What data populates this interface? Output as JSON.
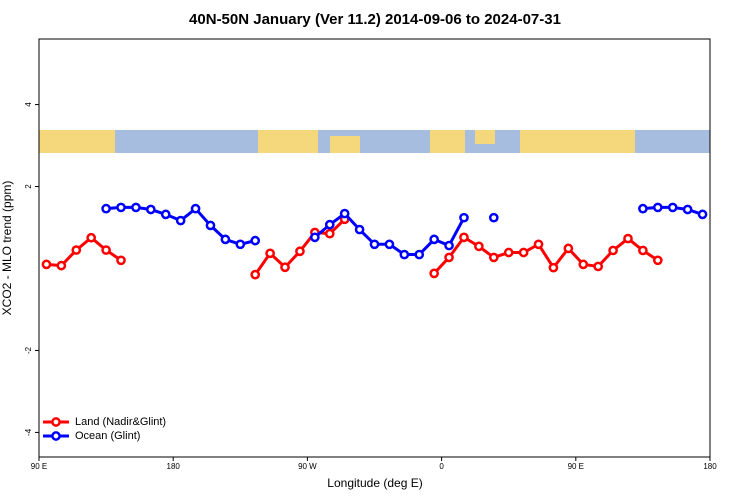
{
  "chart_data": {
    "type": "line",
    "title": "40N-50N January (Ver 11.2)   2014-09-06 to 2024-07-31",
    "xlabel": "Longitude (deg E)",
    "ylabel": "XCO2 - MLO trend (ppm)",
    "x": [
      95,
      105,
      115,
      125,
      135,
      145,
      155,
      165,
      175,
      185,
      195,
      205,
      215,
      225,
      235,
      245,
      255,
      265,
      275,
      285,
      295,
      305,
      315,
      325,
      335,
      345,
      355,
      365,
      375,
      385,
      395,
      405,
      415,
      425,
      435,
      445,
      455,
      465,
      475,
      485,
      495,
      505,
      515,
      525,
      535
    ],
    "series": [
      {
        "name": "Land (Nadir&Glint)",
        "color": "#ff0000",
        "values": [
          0.1,
          0.07,
          0.45,
          0.75,
          0.45,
          0.2,
          null,
          null,
          null,
          null,
          null,
          null,
          null,
          null,
          -0.15,
          0.37,
          0.03,
          0.42,
          0.88,
          0.85,
          1.2,
          null,
          null,
          null,
          null,
          null,
          -0.12,
          0.27,
          0.76,
          0.54,
          0.27,
          0.39,
          0.39,
          0.59,
          0.02,
          0.49,
          0.1,
          0.05,
          0.44,
          0.73,
          0.44,
          0.2,
          null,
          null,
          null
        ]
      },
      {
        "name": "Ocean (Glint)",
        "color": "#0000ff",
        "values": [
          null,
          null,
          null,
          null,
          1.46,
          1.49,
          1.49,
          1.44,
          1.32,
          1.17,
          1.46,
          1.05,
          0.71,
          0.59,
          0.68,
          null,
          null,
          null,
          0.76,
          1.07,
          1.34,
          0.95,
          0.59,
          0.59,
          0.34,
          0.34,
          0.71,
          0.56,
          1.24,
          null,
          1.24,
          null,
          null,
          null,
          null,
          null,
          null,
          null,
          null,
          null,
          1.46,
          1.49,
          1.49,
          1.44,
          1.32
        ]
      }
    ],
    "xlim": [
      90,
      540
    ],
    "xticks": [
      {
        "value": 90,
        "label": "90 E"
      },
      180,
      {
        "value": 270,
        "label": "90 W"
      },
      {
        "value": 360,
        "label": "0"
      },
      {
        "value": 450,
        "label": "90 E"
      },
      {
        "value": 540,
        "label": "180"
      }
    ],
    "ylim": [
      -4.6,
      5.6
    ],
    "yticks": [
      -4,
      -2,
      2,
      4
    ],
    "legend": "bottom-left"
  }
}
